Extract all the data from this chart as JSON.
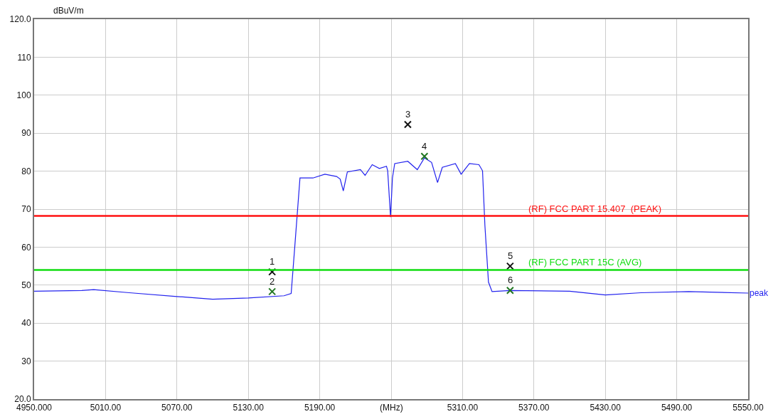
{
  "chart_data": {
    "type": "line",
    "xlabel": "(MHz)",
    "ylabel": "dBuV/m",
    "xlim": [
      4950,
      5550
    ],
    "xticks": [
      {
        "value": 4950,
        "label": "4950.000"
      },
      {
        "value": 5010,
        "label": "5010.00"
      },
      {
        "value": 5070,
        "label": "5070.00"
      },
      {
        "value": 5130,
        "label": "5130.00"
      },
      {
        "value": 5190,
        "label": "5190.00"
      },
      {
        "value": 5250,
        "label": null
      },
      {
        "value": 5310,
        "label": "5310.00"
      },
      {
        "value": 5370,
        "label": "5370.00"
      },
      {
        "value": 5430,
        "label": "5430.00"
      },
      {
        "value": 5490,
        "label": "5490.00"
      },
      {
        "value": 5550,
        "label": "5550.00"
      }
    ],
    "ylim": [
      20,
      120
    ],
    "yticks": [
      {
        "value": 20,
        "label": "20.0"
      },
      30,
      40,
      50,
      60,
      70,
      80,
      90,
      100,
      110,
      {
        "value": 120,
        "label": "120.0"
      }
    ],
    "grid": true,
    "series": [
      {
        "name": "peak",
        "color": "#2222ee",
        "marker": "none",
        "x": [
          4950,
          4990,
          5000,
          5030,
          5070,
          5100,
          5130,
          5160,
          5166,
          5169,
          5173.4,
          5184.3,
          5194.3,
          5204.2,
          5207.2,
          5209.8,
          5213.2,
          5224.2,
          5228.1,
          5234.1,
          5240.1,
          5246.1,
          5247.1,
          5249.5,
          5251.1,
          5253,
          5264,
          5272,
          5278,
          5284,
          5289,
          5293,
          5304,
          5308.8,
          5315.8,
          5323.8,
          5326.8,
          5328.8,
          5331.8,
          5334.8,
          5350,
          5400,
          5430,
          5460,
          5500,
          5550
        ],
        "values": [
          48.4,
          48.6,
          48.8,
          48.0,
          47.0,
          46.3,
          46.6,
          47.2,
          47.8,
          60.0,
          78.2,
          78.2,
          79.2,
          78.6,
          77.9,
          74.8,
          79.8,
          80.4,
          78.9,
          81.7,
          80.7,
          81.3,
          80.1,
          67.9,
          78.2,
          82.0,
          82.6,
          80.4,
          83.5,
          82.3,
          77.0,
          81.0,
          82.0,
          79.2,
          82.0,
          81.7,
          80.1,
          65.7,
          50.8,
          48.3,
          48.6,
          48.4,
          47.4,
          48.0,
          48.3,
          47.9
        ]
      },
      {
        "color": "#111111",
        "type": "scatter",
        "marker": "cross",
        "x": [
          5150,
          5264,
          5350
        ],
        "values": [
          53.5,
          92.3,
          55.0
        ]
      },
      {
        "color": "#227722",
        "type": "scatter",
        "marker": "cross",
        "x": [
          5150,
          5278,
          5350
        ],
        "values": [
          48.3,
          83.9,
          48.6
        ]
      }
    ],
    "annotations": [
      {
        "text": "1",
        "x": 5150,
        "y": 53.5
      },
      {
        "text": "2",
        "x": 5150,
        "y": 48.3
      },
      {
        "text": "3",
        "x": 5264,
        "y": 92.3
      },
      {
        "text": "4",
        "x": 5278,
        "y": 83.9
      },
      {
        "text": "5",
        "x": 5350,
        "y": 55.0
      },
      {
        "text": "6",
        "x": 5350,
        "y": 48.6
      }
    ],
    "ref_lines": [
      {
        "axis": "y",
        "value": 68.2,
        "label": "(RF) FCC PART 15.407  (PEAK)",
        "color": "#ff1111"
      },
      {
        "axis": "y",
        "value": 54,
        "label": "(RF) FCC PART 15C (AVG)",
        "color": "#11dd11"
      }
    ]
  }
}
